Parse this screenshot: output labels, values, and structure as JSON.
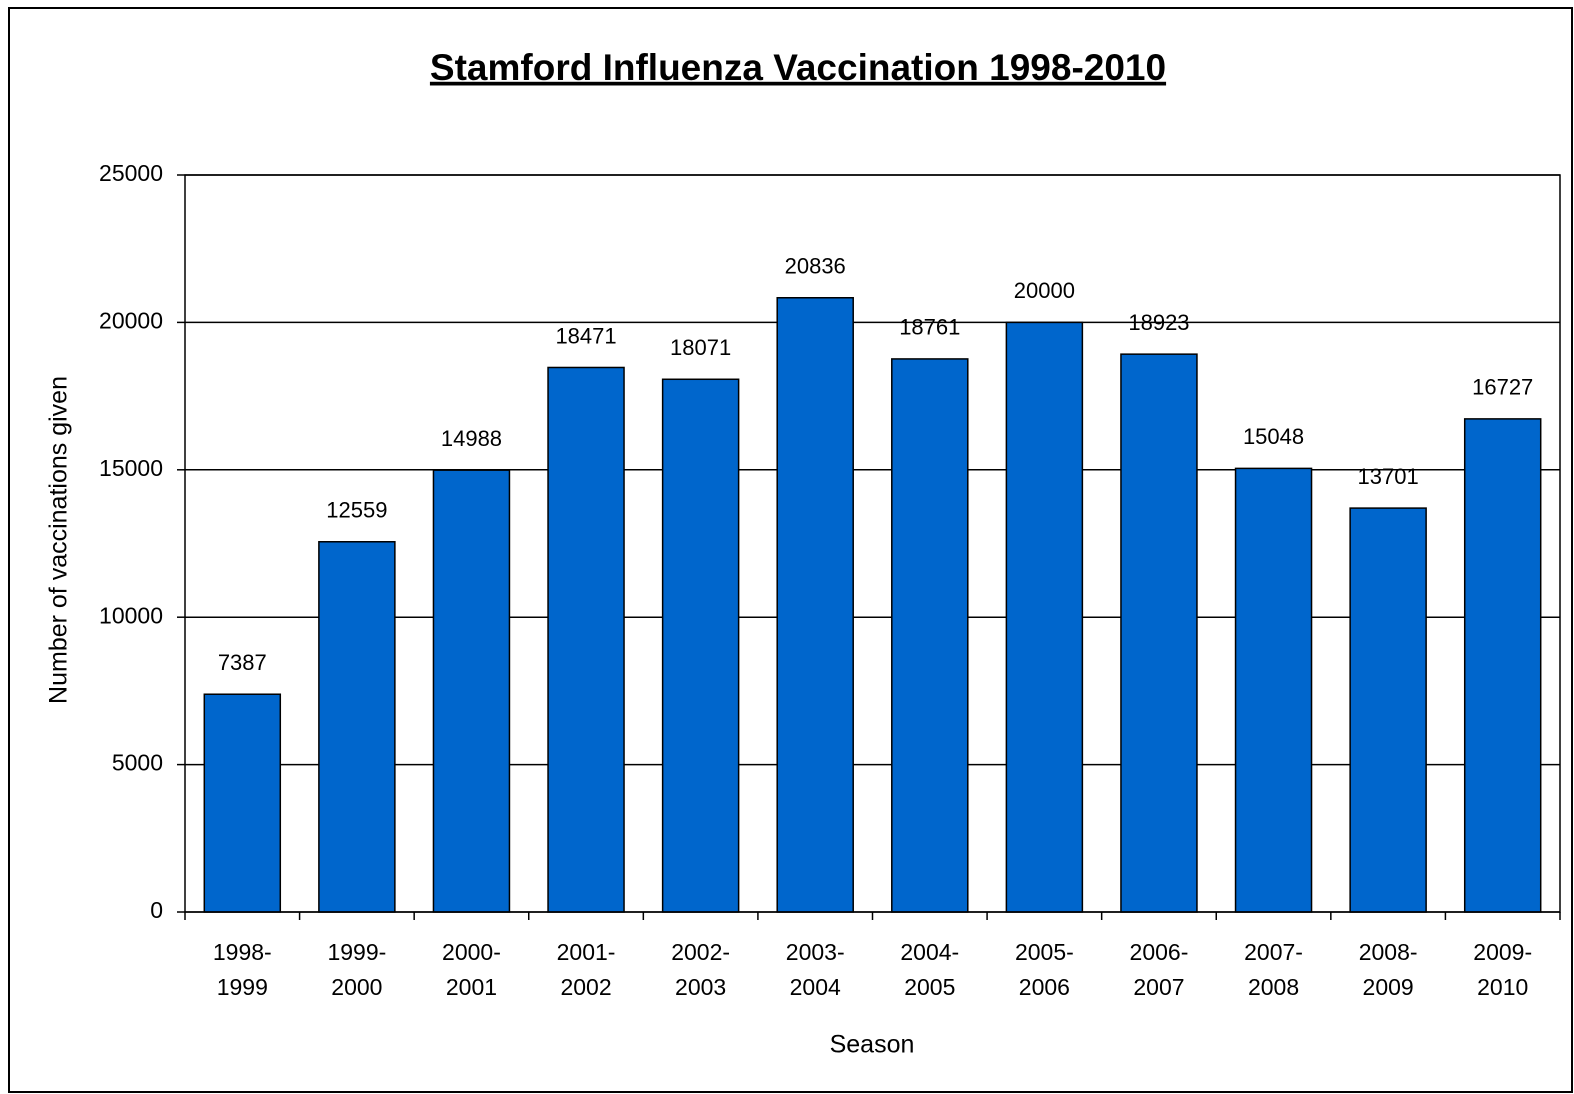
{
  "chart_data": {
    "type": "bar",
    "title": "Stamford Influenza Vaccination 1998-2010",
    "x_label": "Season",
    "y_label": "Number of vaccinations given",
    "categories": [
      "1998-1999",
      "1999-2000",
      "2000-2001",
      "2001-2002",
      "2002-2003",
      "2003-2004",
      "2004-2005",
      "2005-2006",
      "2006-2007",
      "2007-2008",
      "2008-2009",
      "2009-2010"
    ],
    "values": [
      7387,
      12559,
      14988,
      18471,
      18071,
      20836,
      18761,
      20000,
      18923,
      15048,
      13701,
      16727
    ],
    "color": "#0066cc",
    "ylim": [
      0,
      25000
    ],
    "yticks": [
      0,
      5000,
      10000,
      15000,
      20000,
      25000
    ],
    "grid": true
  }
}
